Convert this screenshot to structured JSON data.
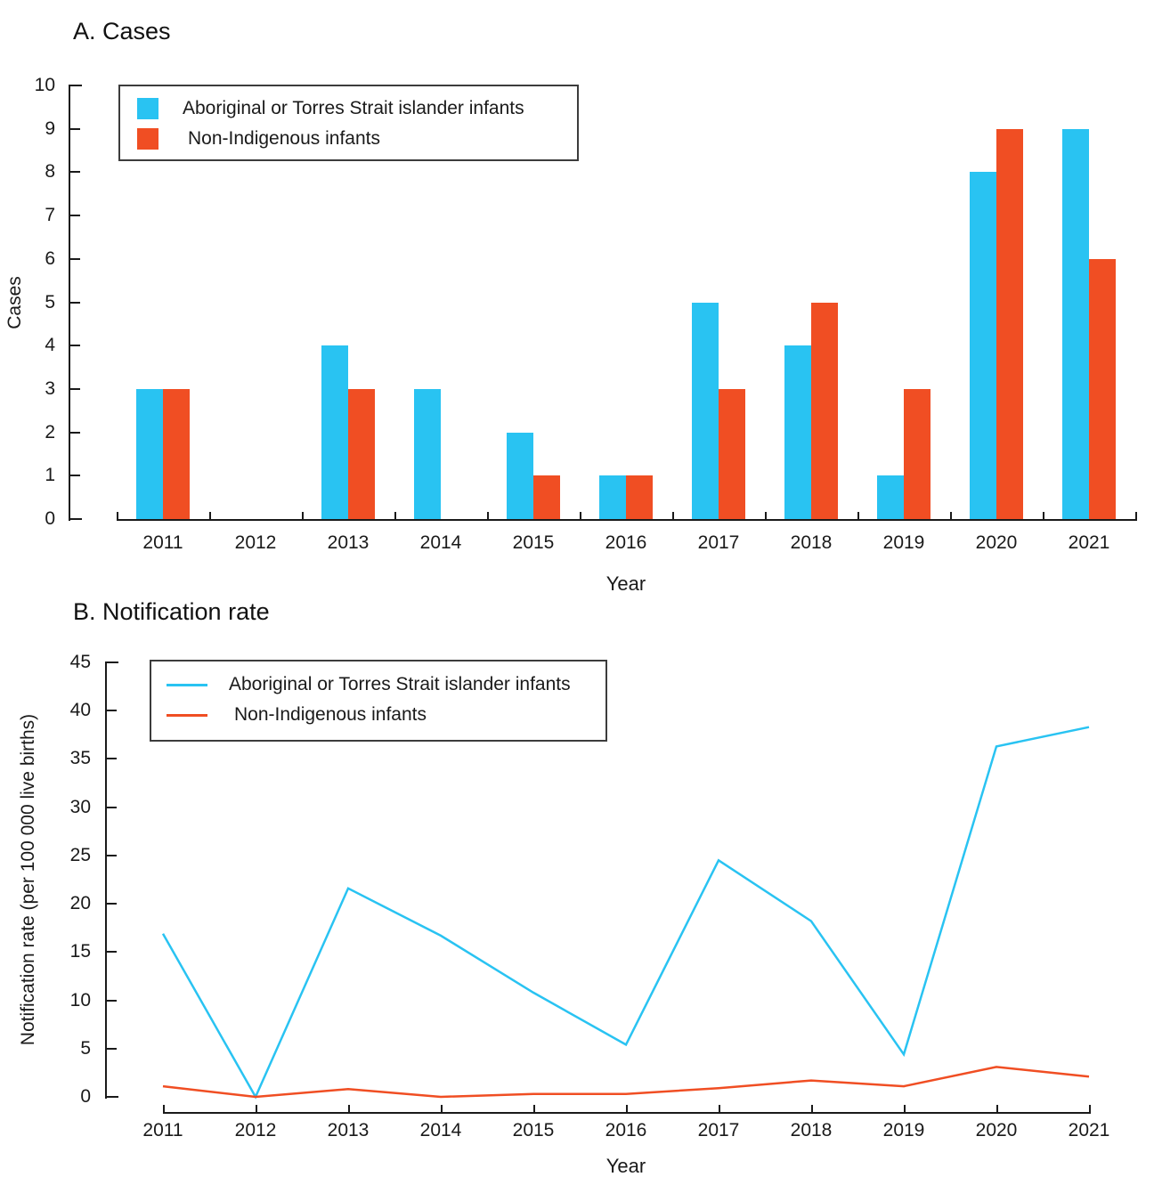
{
  "colors": {
    "indigenous_series": "#29C3F2",
    "non_indigenous_series": "#F04E23",
    "axis": "#1A1A1A",
    "text": "#1A1A1A",
    "legend_border": "#3C3C3C"
  },
  "chart_data": [
    {
      "type": "bar",
      "panel": "A",
      "title": "A. Cases",
      "xlabel": "Year",
      "ylabel": "Cases",
      "ylim": [
        0,
        10
      ],
      "yticks": [
        0,
        1,
        2,
        3,
        4,
        5,
        6,
        7,
        8,
        9,
        10
      ],
      "categories": [
        "2011",
        "2012",
        "2013",
        "2014",
        "2015",
        "2016",
        "2017",
        "2018",
        "2019",
        "2020",
        "2021"
      ],
      "grid": false,
      "legend_position": "top-left",
      "series": [
        {
          "name": "Aboriginal or Torres Strait islander infants",
          "color": "#29C3F2",
          "values": [
            3,
            0,
            4,
            3,
            2,
            1,
            5,
            4,
            1,
            8,
            9
          ]
        },
        {
          "name": "Non-Indigenous infants",
          "color": "#F04E23",
          "values": [
            3,
            0,
            3,
            0,
            1,
            1,
            3,
            5,
            3,
            9,
            6
          ]
        }
      ]
    },
    {
      "type": "line",
      "panel": "B",
      "title": "B. Notification rate",
      "xlabel": "Year",
      "ylabel": "Notification rate (per 100 000 live births)",
      "ylim": [
        0,
        45
      ],
      "yticks": [
        0,
        5,
        10,
        15,
        20,
        25,
        30,
        35,
        40,
        45
      ],
      "categories": [
        "2011",
        "2012",
        "2013",
        "2014",
        "2015",
        "2016",
        "2017",
        "2018",
        "2019",
        "2020",
        "2021"
      ],
      "grid": false,
      "legend_position": "top-left",
      "series": [
        {
          "name": "Aboriginal or Torres Strait islander infants",
          "color": "#29C3F2",
          "values": [
            16.9,
            0,
            21.6,
            16.7,
            10.8,
            5.4,
            24.5,
            18.2,
            4.4,
            36.3,
            38.3
          ]
        },
        {
          "name": "Non-Indigenous infants",
          "color": "#F04E23",
          "values": [
            1.1,
            0,
            0.8,
            0,
            0.3,
            0.3,
            0.9,
            1.7,
            1.1,
            3.1,
            2.1
          ]
        }
      ]
    }
  ]
}
